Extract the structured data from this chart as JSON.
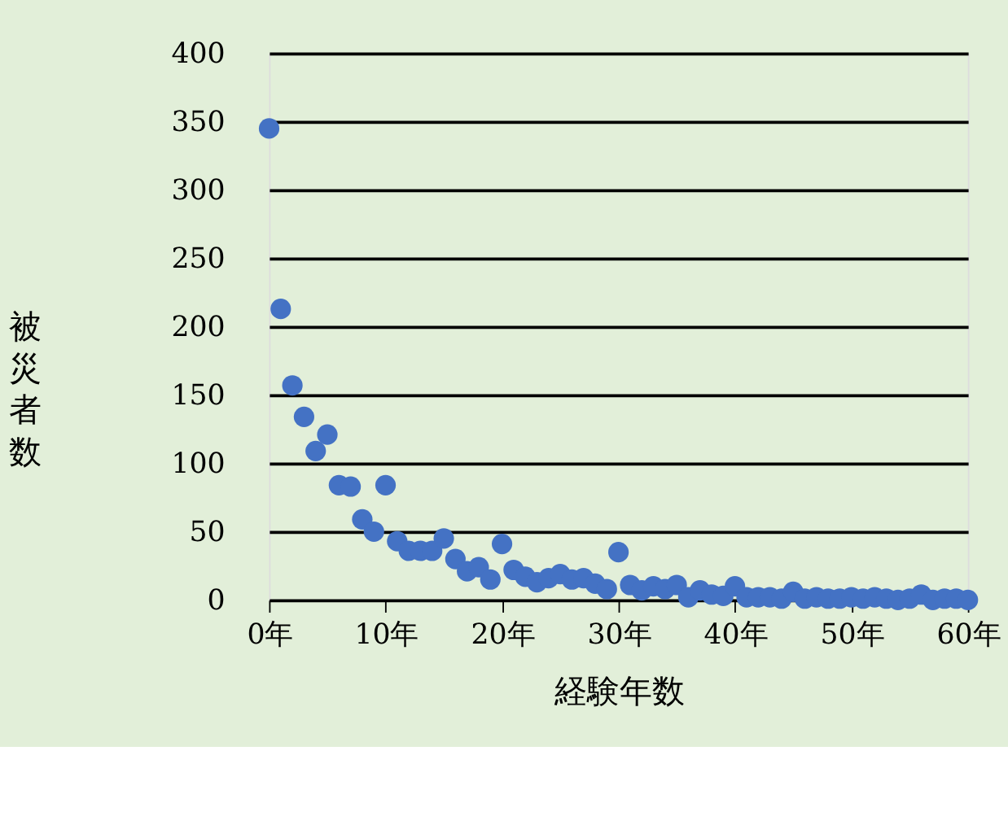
{
  "chart_data": {
    "type": "scatter",
    "xlabel": "経験年数",
    "ylabel": "被災者数",
    "x": [
      0,
      1,
      2,
      3,
      4,
      5,
      6,
      7,
      8,
      9,
      10,
      11,
      12,
      13,
      14,
      15,
      16,
      17,
      18,
      19,
      20,
      21,
      22,
      23,
      24,
      25,
      26,
      27,
      28,
      29,
      30,
      31,
      32,
      33,
      34,
      35,
      36,
      37,
      38,
      39,
      40,
      41,
      42,
      43,
      44,
      45,
      46,
      47,
      48,
      49,
      50,
      51,
      52,
      53,
      54,
      55,
      56,
      57,
      58,
      59,
      60
    ],
    "series": [
      {
        "color": "#4472c4",
        "values": [
          345,
          213,
          157,
          134,
          109,
          121,
          84,
          83,
          59,
          50,
          84,
          43,
          36,
          36,
          36,
          45,
          30,
          21,
          24,
          15,
          41,
          22,
          17,
          13,
          16,
          19,
          15,
          16,
          12,
          8,
          35,
          11,
          7,
          10,
          8,
          11,
          2,
          7,
          4,
          3,
          10,
          2,
          2,
          2,
          1,
          6,
          1,
          2,
          1,
          1,
          2,
          1,
          2,
          1,
          0,
          1,
          4,
          0,
          1,
          1,
          0
        ]
      }
    ],
    "xlim": [
      0,
      60
    ],
    "xticks": [
      {
        "value": 0,
        "label": "0年"
      },
      {
        "value": 10,
        "label": "10年"
      },
      {
        "value": 20,
        "label": "20年"
      },
      {
        "value": 30,
        "label": "30年"
      },
      {
        "value": 40,
        "label": "40年"
      },
      {
        "value": 50,
        "label": "50年"
      },
      {
        "value": 60,
        "label": "60年"
      }
    ],
    "ylim": [
      0,
      400
    ],
    "yticks": [
      0,
      50,
      100,
      150,
      200,
      250,
      300,
      350,
      400
    ],
    "grid": "y",
    "legend": false,
    "marker": "circle"
  }
}
